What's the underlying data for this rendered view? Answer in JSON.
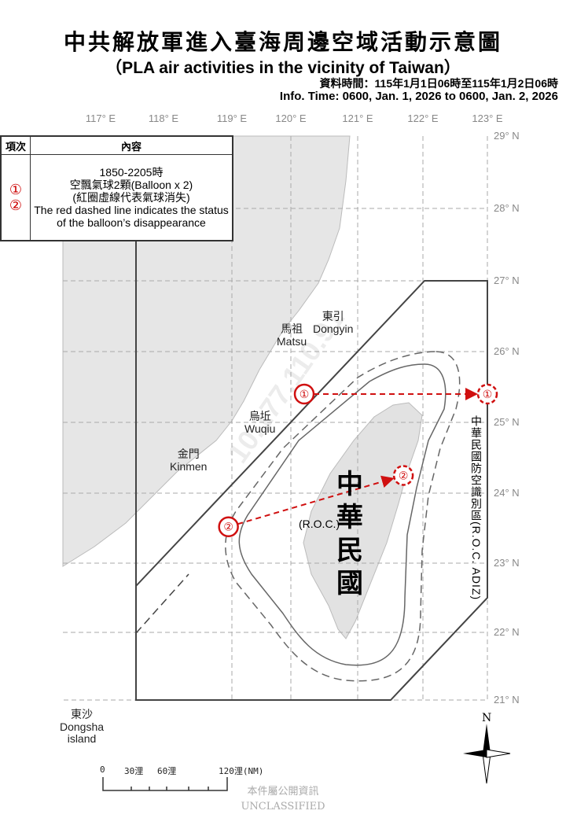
{
  "header": {
    "title_zh": "中共解放軍進入臺海周邊空域活動示意圖",
    "title_en": "（PLA air activities in the vicinity of Taiwan）",
    "time_zh": "資料時間：115年1月1日06時至115年1月2日06時",
    "time_en": "Info. Time: 0600, Jan. 1, 2026 to 0600, Jan. 2, 2026"
  },
  "axes": {
    "longitudes": [
      "117° E",
      "118° E",
      "119° E",
      "120° E",
      "121° E",
      "122° E",
      "123° E"
    ],
    "latitudes": [
      "29° N",
      "28° N",
      "27° N",
      "26° N",
      "25° N",
      "24° N",
      "23° N",
      "22° N",
      "21° N"
    ]
  },
  "legend": {
    "col_item": "項次",
    "col_content": "內容",
    "item_marks": [
      "①",
      "②"
    ],
    "lines": [
      "1850-2205時",
      "空飄氣球2顆(Balloon x 2)",
      "(紅圈虛線代表氣球消失)",
      "The red dashed line indicates the status of the balloon’s disappearance"
    ]
  },
  "places": {
    "dongyin": {
      "zh": "東引",
      "en": "Dongyin"
    },
    "matsu": {
      "zh": "馬祖",
      "en": "Matsu"
    },
    "wuqiu": {
      "zh": "烏坵",
      "en": "Wuqiu"
    },
    "kinmen": {
      "zh": "金門",
      "en": "Kinmen"
    },
    "dongsha": {
      "zh": "東沙",
      "en": "Dongsha island"
    }
  },
  "taiwan": {
    "zh": "中華民國",
    "en": "(R.O.C.)"
  },
  "adiz_label": "中華民國防空識別區(R.O.C. ADIZ)",
  "tracks": [
    {
      "id": "①",
      "start": [
        120.2,
        25.4
      ],
      "end": [
        123.0,
        25.4
      ]
    },
    {
      "id": "②",
      "start": [
        118.95,
        23.52
      ],
      "end": [
        121.7,
        24.25
      ]
    }
  ],
  "colors": {
    "track": "#d01010",
    "land": "#e6e6e6",
    "grid": "#aaaaaa"
  },
  "scale": {
    "labels": [
      "0",
      "30浬",
      "60浬",
      "120浬(NM)"
    ]
  },
  "compass": {
    "north": "N"
  },
  "footer": {
    "zh": "本件屬公開資訊",
    "en": "UNCLASSIFIED"
  },
  "watermark": "10.177.110.91"
}
